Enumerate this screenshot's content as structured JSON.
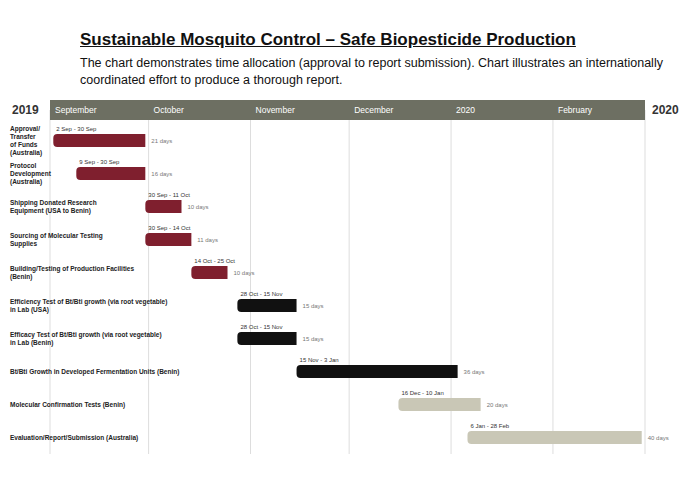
{
  "chart_data": {
    "type": "gantt",
    "title": "Sustainable Mosquito Control – Safe Biopesticide Production",
    "subtitle": "The chart demonstrates time allocation (approval to report submission). Chart illustrates an internationally coordinated effort to produce a thorough report.",
    "annotations": [
      "2019",
      "2020"
    ],
    "orientation": "horizontal",
    "grid": true,
    "data_labels": true,
    "categories": [
      "Approval/ Transfer of Funds (Australia)",
      "Protocol Development (Australia)",
      "Shipping Donated Research Equipment (USA to Benin)",
      "Sourcing of Molecular Testing Supplies",
      "Building/Testing of Production Facilities (Benin)",
      "Efficiency Test of Bt/Bti growth (via root vegetable) in Lab (USA)",
      "Efficacy Test of Bt/Bti growth (via root vegetable) in Lab (Benin)",
      "Bt/Bti Growth in Developed Fermentation Units (Benin)",
      "Molecular Confirmation Tests (Benin)",
      "Evaluation/Report/Submission (Australia)"
    ],
    "start": [
      "2019-09-02",
      "2019-09-09",
      "2019-09-30",
      "2019-09-30",
      "2019-10-14",
      "2019-10-28",
      "2019-10-28",
      "2019-11-15",
      "2019-12-16",
      "2020-01-06"
    ],
    "end": [
      "2019-09-30",
      "2019-09-30",
      "2019-10-11",
      "2019-10-14",
      "2019-10-25",
      "2019-11-15",
      "2019-11-15",
      "2020-01-03",
      "2020-01-10",
      "2020-02-28"
    ],
    "range_labels": [
      "2 Sep - 30 Sep",
      "9 Sep - 30 Sep",
      "30 Sep - 11 Oct",
      "30 Sep - 14 Oct",
      "14 Oct - 25 Oct",
      "28 Oct - 15 Nov",
      "28 Oct - 15 Nov",
      "15 Nov - 3 Jan",
      "16 Dec - 10 Jan",
      "6 Jan - 28 Feb"
    ],
    "duration_labels": [
      "21 days",
      "16 days",
      "10 days",
      "11 days",
      "10 days",
      "15 days",
      "15 days",
      "36 days",
      "20 days",
      "40 days"
    ],
    "colors": [
      "#7f1f2e",
      "#7f1f2e",
      "#7f1f2e",
      "#7f1f2e",
      "#7f1f2e",
      "#111111",
      "#111111",
      "#111111",
      "#c9c7b6",
      "#c9c7b6"
    ],
    "xlim": [
      "2019-09-01",
      "2020-02-29"
    ],
    "xticks": [
      {
        "value": "2019-09-01",
        "label": "September"
      },
      {
        "value": "2019-10-01",
        "label": "October"
      },
      {
        "value": "2019-11-01",
        "label": "November"
      },
      {
        "value": "2019-12-01",
        "label": "December"
      },
      {
        "value": "2020-01-01",
        "label": "2020"
      },
      {
        "value": "2020-02-01",
        "label": "February"
      }
    ]
  }
}
